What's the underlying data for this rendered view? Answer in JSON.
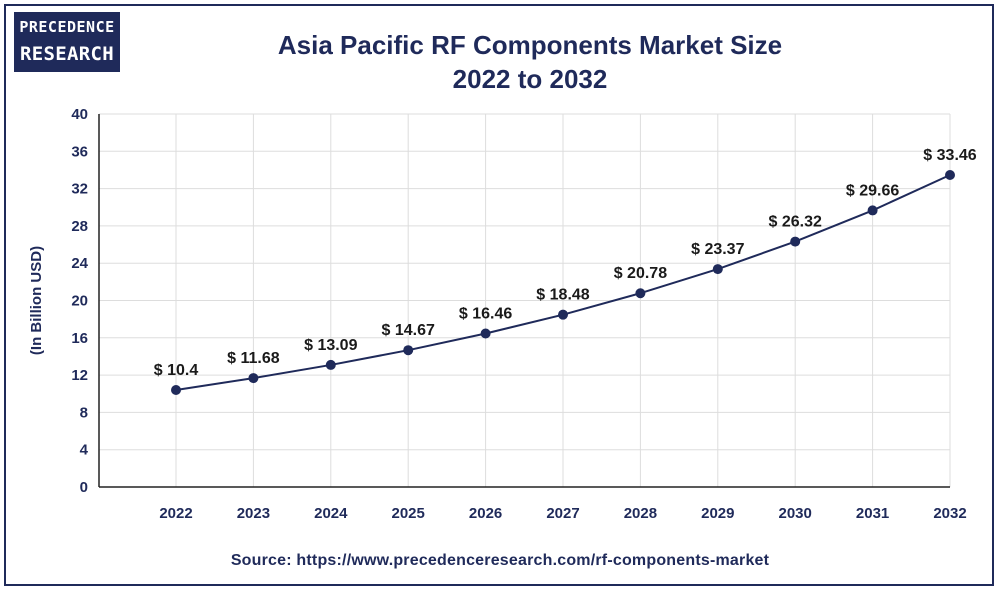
{
  "logo": {
    "line1": "PRECEDENCE",
    "line2": "RESEARCH"
  },
  "title_line1": "Asia Pacific RF Components Market Size",
  "title_line2": "2022 to 2032",
  "source": "Source: https://www.precedenceresearch.com/rf-components-market",
  "colors": {
    "primary": "#1f2a5a",
    "grid": "#dddddd"
  },
  "chart_data": {
    "type": "line",
    "title": "Asia Pacific RF Components Market Size 2022 to 2032",
    "xlabel": "",
    "ylabel": "(In Billion USD)",
    "ylim": [
      0,
      40
    ],
    "yticks": [
      0,
      4,
      8,
      12,
      16,
      20,
      24,
      28,
      32,
      36,
      40
    ],
    "categories": [
      "2022",
      "2023",
      "2024",
      "2025",
      "2026",
      "2027",
      "2028",
      "2029",
      "2030",
      "2031",
      "2032"
    ],
    "values": [
      10.4,
      11.68,
      13.09,
      14.67,
      16.46,
      18.48,
      20.78,
      23.37,
      26.32,
      29.66,
      33.46
    ],
    "data_labels": [
      "$ 10.4",
      "$ 11.68",
      "$ 13.09",
      "$ 14.67",
      "$ 16.46",
      "$ 18.48",
      "$ 20.78",
      "$ 23.37",
      "$ 26.32",
      "$ 29.66",
      "$ 33.46"
    ],
    "grid": true,
    "legend": "none"
  }
}
